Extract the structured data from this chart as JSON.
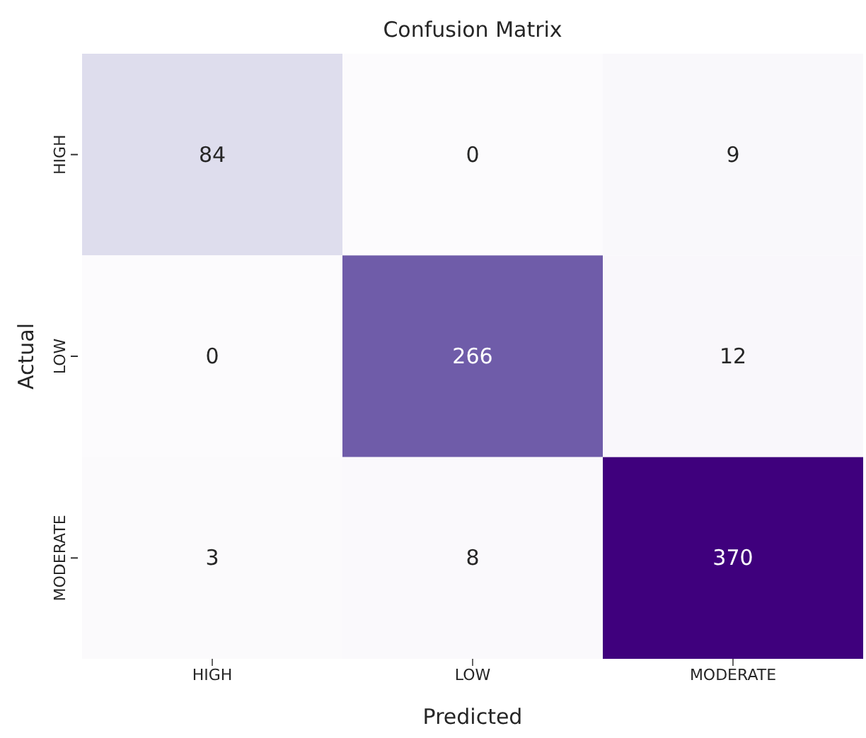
{
  "chart_data": {
    "type": "heatmap",
    "title": "Confusion Matrix",
    "xlabel": "Predicted",
    "ylabel": "Actual",
    "categories": [
      "HIGH",
      "LOW",
      "MODERATE"
    ],
    "y_categories": [
      "HIGH",
      "LOW",
      "MODERATE"
    ],
    "cells": [
      [
        84,
        0,
        9
      ],
      [
        0,
        266,
        12
      ],
      [
        3,
        8,
        370
      ]
    ],
    "data_labels": true
  }
}
